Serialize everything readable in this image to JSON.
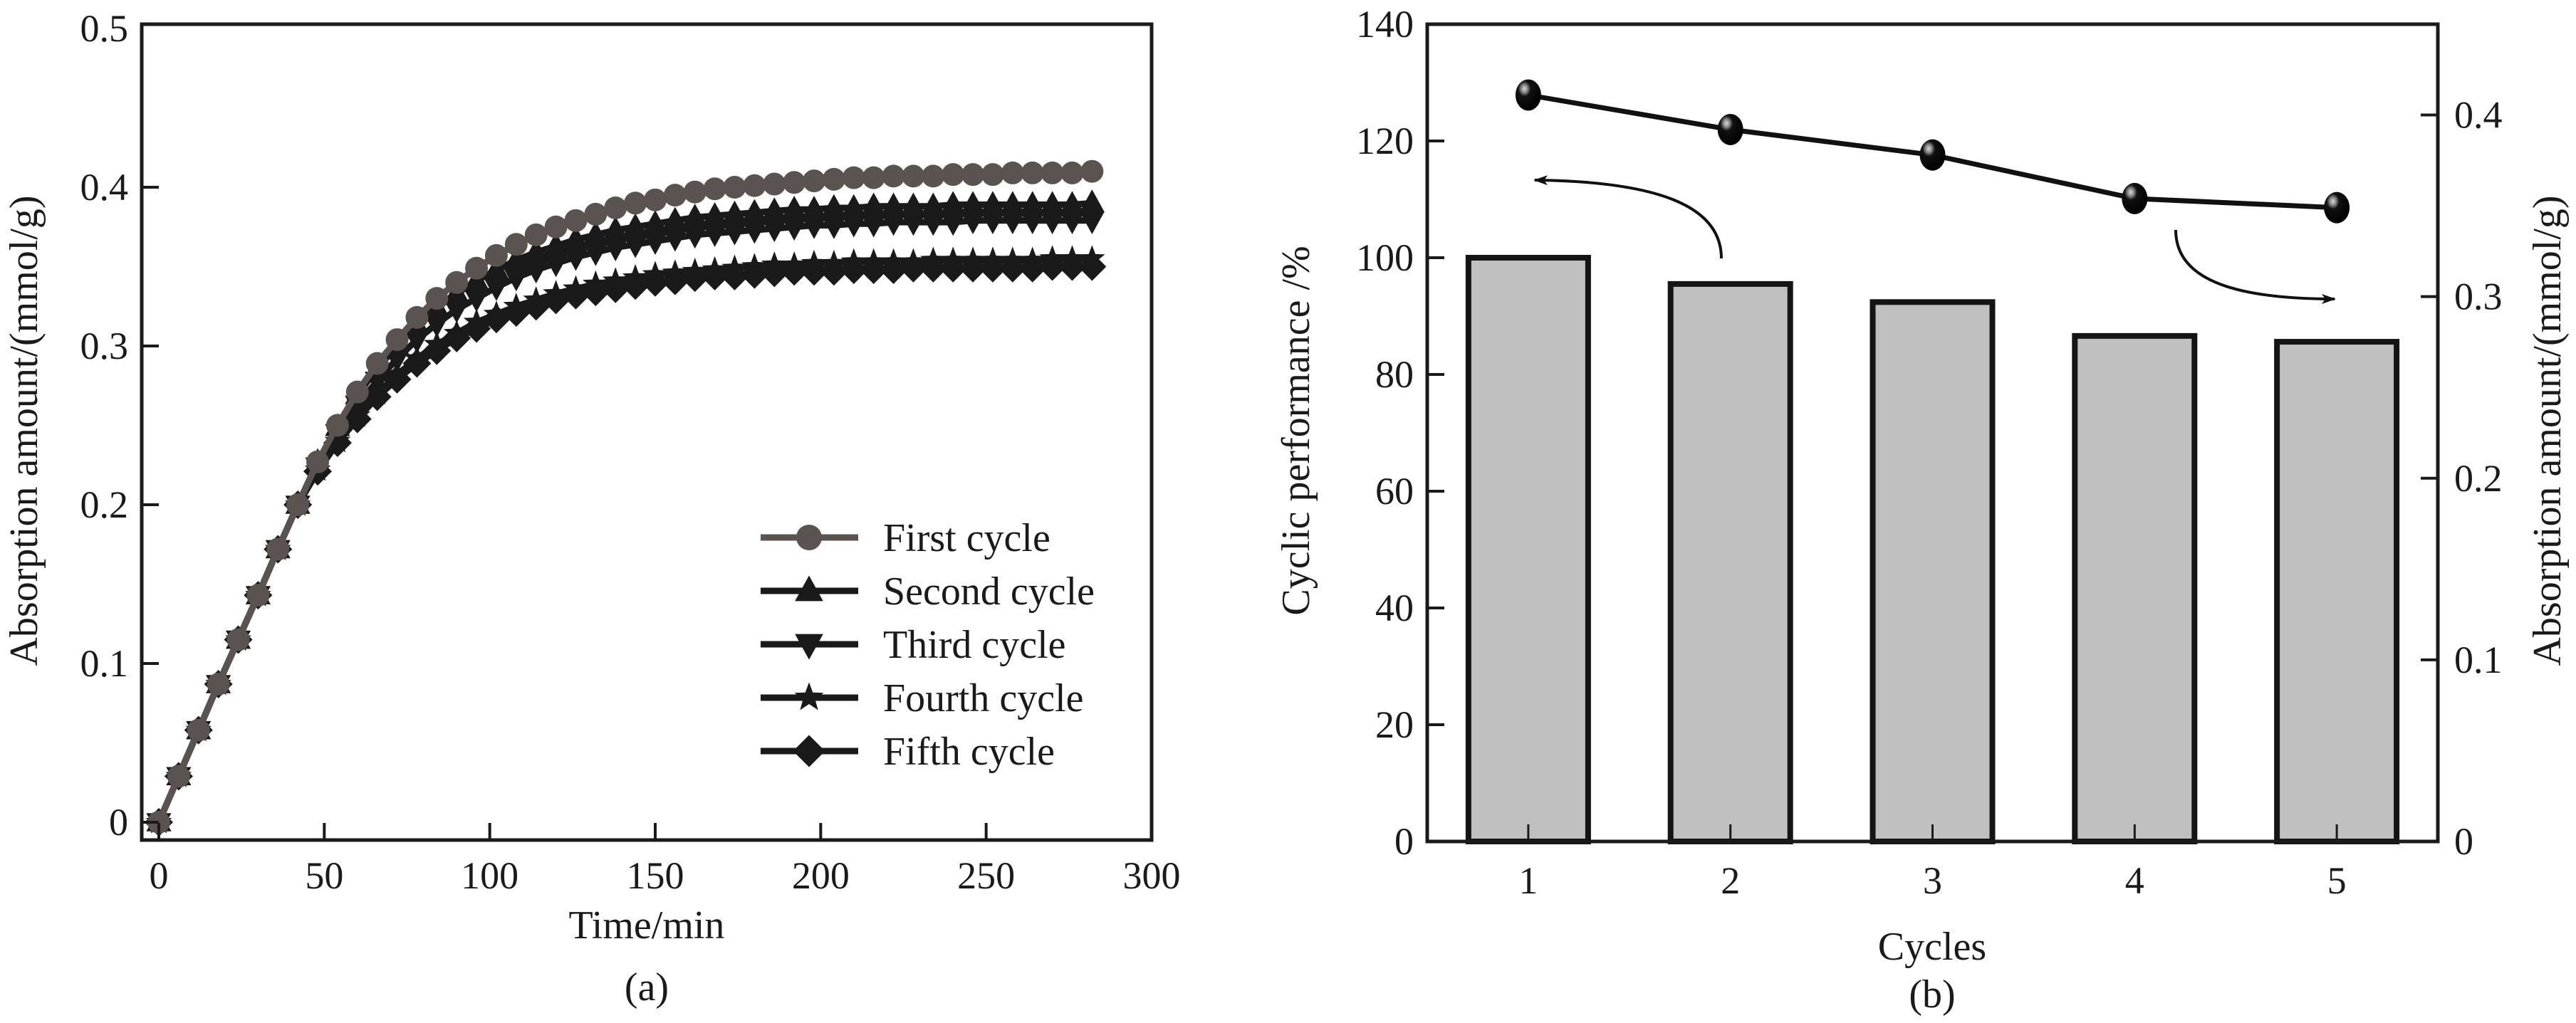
{
  "chart_data": [
    {
      "panel": "(a)",
      "type": "line",
      "title": "",
      "xlabel": "Time/min",
      "ylabel": "Absorption amount/(mmol/g)",
      "xlim": [
        -5,
        300
      ],
      "ylim": [
        0,
        0.5
      ],
      "xticks": [
        0,
        50,
        100,
        150,
        200,
        250,
        300
      ],
      "yticks": [
        0,
        0.1,
        0.2,
        0.3,
        0.4,
        0.5
      ],
      "xtick_labels": [
        "0",
        "50",
        "100",
        "150",
        "200",
        "250",
        "300"
      ],
      "ytick_labels": [
        "0",
        "0.1",
        "0.2",
        "0.3",
        "0.4",
        "0.5"
      ],
      "grid": false,
      "legend_position": "bottom-right",
      "x": [
        0,
        6,
        12,
        18,
        24,
        30,
        36,
        42,
        48,
        54,
        60,
        66,
        72,
        78,
        84,
        90,
        96,
        102,
        108,
        114,
        120,
        126,
        132,
        138,
        144,
        150,
        156,
        162,
        168,
        174,
        180,
        186,
        192,
        198,
        204,
        210,
        216,
        222,
        228,
        234,
        240,
        246,
        252,
        258,
        264,
        270,
        276,
        282
      ],
      "series": [
        {
          "name": "First cycle",
          "marker": "circle",
          "color": "#5a5350",
          "values": [
            0,
            0.029,
            0.058,
            0.087,
            0.115,
            0.143,
            0.172,
            0.2,
            0.227,
            0.25,
            0.271,
            0.289,
            0.304,
            0.318,
            0.33,
            0.34,
            0.349,
            0.357,
            0.364,
            0.37,
            0.375,
            0.379,
            0.383,
            0.387,
            0.39,
            0.392,
            0.395,
            0.397,
            0.399,
            0.4,
            0.401,
            0.402,
            0.403,
            0.404,
            0.405,
            0.406,
            0.406,
            0.407,
            0.407,
            0.407,
            0.408,
            0.408,
            0.408,
            0.409,
            0.409,
            0.409,
            0.409,
            0.41
          ]
        },
        {
          "name": "Second cycle",
          "marker": "triangle-up",
          "color": "#1a1a1a",
          "values": [
            0,
            0.029,
            0.058,
            0.087,
            0.115,
            0.143,
            0.172,
            0.2,
            0.227,
            0.249,
            0.269,
            0.286,
            0.3,
            0.313,
            0.324,
            0.333,
            0.341,
            0.348,
            0.354,
            0.359,
            0.363,
            0.367,
            0.37,
            0.373,
            0.375,
            0.377,
            0.379,
            0.381,
            0.382,
            0.383,
            0.384,
            0.385,
            0.386,
            0.386,
            0.387,
            0.387,
            0.388,
            0.388,
            0.388,
            0.388,
            0.389,
            0.389,
            0.389,
            0.389,
            0.389,
            0.389,
            0.389,
            0.39
          ]
        },
        {
          "name": "Third cycle",
          "marker": "triangle-down",
          "color": "#1a1a1a",
          "values": [
            0,
            0.029,
            0.058,
            0.087,
            0.115,
            0.143,
            0.172,
            0.2,
            0.224,
            0.245,
            0.263,
            0.278,
            0.292,
            0.304,
            0.314,
            0.323,
            0.33,
            0.337,
            0.343,
            0.348,
            0.352,
            0.356,
            0.359,
            0.362,
            0.364,
            0.366,
            0.368,
            0.37,
            0.371,
            0.372,
            0.373,
            0.374,
            0.375,
            0.376,
            0.376,
            0.377,
            0.377,
            0.378,
            0.378,
            0.378,
            0.378,
            0.379,
            0.379,
            0.379,
            0.379,
            0.379,
            0.379,
            0.379
          ]
        },
        {
          "name": "Fourth cycle",
          "marker": "star",
          "color": "#1a1a1a",
          "values": [
            0,
            0.029,
            0.058,
            0.087,
            0.115,
            0.143,
            0.172,
            0.2,
            0.222,
            0.24,
            0.256,
            0.27,
            0.282,
            0.292,
            0.301,
            0.308,
            0.315,
            0.32,
            0.325,
            0.329,
            0.333,
            0.336,
            0.339,
            0.341,
            0.343,
            0.345,
            0.346,
            0.347,
            0.348,
            0.349,
            0.35,
            0.351,
            0.351,
            0.352,
            0.352,
            0.353,
            0.353,
            0.353,
            0.353,
            0.354,
            0.354,
            0.354,
            0.354,
            0.354,
            0.354,
            0.355,
            0.355,
            0.355
          ]
        },
        {
          "name": "Fifth cycle",
          "marker": "diamond",
          "color": "#1a1a1a",
          "values": [
            0,
            0.029,
            0.058,
            0.087,
            0.115,
            0.143,
            0.172,
            0.2,
            0.221,
            0.239,
            0.254,
            0.268,
            0.279,
            0.289,
            0.297,
            0.305,
            0.311,
            0.317,
            0.321,
            0.325,
            0.329,
            0.332,
            0.334,
            0.336,
            0.338,
            0.34,
            0.341,
            0.343,
            0.344,
            0.344,
            0.345,
            0.346,
            0.347,
            0.347,
            0.347,
            0.348,
            0.348,
            0.348,
            0.349,
            0.349,
            0.349,
            0.349,
            0.349,
            0.349,
            0.349,
            0.35,
            0.35,
            0.35
          ]
        }
      ]
    },
    {
      "panel": "(b)",
      "type": "bar",
      "title": "",
      "xlabel": "Cycles",
      "ylabel": "Cyclic performance /%",
      "y2label": "Absorption amount/(mmol/g)",
      "categories": [
        "1",
        "2",
        "3",
        "4",
        "5"
      ],
      "ylim": [
        0,
        140
      ],
      "y2lim": [
        0,
        0.45
      ],
      "yticks": [
        0,
        20,
        40,
        60,
        80,
        100,
        120,
        140
      ],
      "ytick_labels": [
        "0",
        "20",
        "40",
        "60",
        "80",
        "100",
        "120",
        "140"
      ],
      "y2ticks": [
        0,
        0.1,
        0.2,
        0.3,
        0.4
      ],
      "y2tick_labels": [
        "0",
        "0.1",
        "0.2",
        "0.3",
        "0.4"
      ],
      "grid": false,
      "bar_color": "#c0c0c0",
      "series": [
        {
          "name": "Cyclic performance",
          "axis": "left",
          "type": "bar",
          "values": [
            100,
            95.5,
            92.4,
            86.6,
            85.6
          ]
        },
        {
          "name": "Absorption amount",
          "axis": "right",
          "type": "line",
          "marker": "sphere",
          "values": [
            0.411,
            0.392,
            0.378,
            0.354,
            0.349
          ]
        }
      ],
      "annotations": [
        {
          "type": "arrow",
          "text": "",
          "points_to": "left-axis",
          "from_category": "2"
        },
        {
          "type": "arrow",
          "text": "",
          "points_to": "right-axis",
          "from_category": "4"
        }
      ]
    }
  ],
  "panels": {
    "a": {
      "label": "(a)"
    },
    "b": {
      "label": "(b)"
    }
  }
}
